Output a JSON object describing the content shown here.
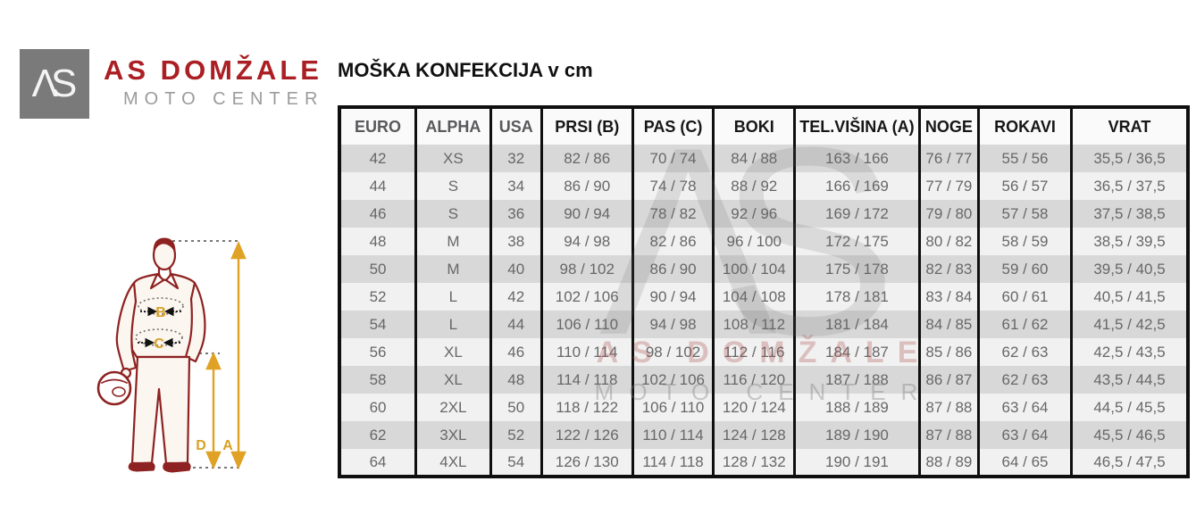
{
  "brand": {
    "logo_glyph": "ΛS",
    "name": "AS DOMŽALE",
    "subtitle": "MOTO CENTER"
  },
  "title": "MOŠKA KONFEKCIJA v cm",
  "watermark": {
    "glyph": "ΛS",
    "line1": "AS DOMŽALE",
    "line2": "MOTO CENTER"
  },
  "figure": {
    "label_a": "A",
    "label_b": "B",
    "label_c": "C",
    "label_d": "D"
  },
  "colors": {
    "brand_red": "#ab1f24",
    "figure_red": "#8e2222",
    "arrow_gold": "#e0a225",
    "row_dark": "#d8d8d8",
    "row_light": "#f1f1f1",
    "border_black": "#0f0f0f"
  },
  "sizing_table": {
    "headers": [
      "EURO",
      "ALPHA",
      "USA",
      "PRSI (B)",
      "PAS (C)",
      "BOKI",
      "TEL.VIŠINA (A)",
      "NOGE",
      "ROKAVI",
      "VRAT"
    ],
    "rows": [
      [
        "42",
        "XS",
        "32",
        "82 / 86",
        "70 / 74",
        "84 / 88",
        "163 / 166",
        "76 / 77",
        "55 / 56",
        "35,5 / 36,5"
      ],
      [
        "44",
        "S",
        "34",
        "86 / 90",
        "74 / 78",
        "88 / 92",
        "166 / 169",
        "77 / 79",
        "56 / 57",
        "36,5 / 37,5"
      ],
      [
        "46",
        "S",
        "36",
        "90 / 94",
        "78 / 82",
        "92 / 96",
        "169 / 172",
        "79 / 80",
        "57 / 58",
        "37,5 / 38,5"
      ],
      [
        "48",
        "M",
        "38",
        "94 / 98",
        "82 / 86",
        "96 / 100",
        "172 / 175",
        "80 / 82",
        "58 / 59",
        "38,5 / 39,5"
      ],
      [
        "50",
        "M",
        "40",
        "98 / 102",
        "86 / 90",
        "100 / 104",
        "175 / 178",
        "82 / 83",
        "59 / 60",
        "39,5 / 40,5"
      ],
      [
        "52",
        "L",
        "42",
        "102 / 106",
        "90 / 94",
        "104 / 108",
        "178 / 181",
        "83 / 84",
        "60 / 61",
        "40,5 / 41,5"
      ],
      [
        "54",
        "L",
        "44",
        "106 / 110",
        "94 / 98",
        "108 / 112",
        "181 / 184",
        "84 / 85",
        "61 / 62",
        "41,5 / 42,5"
      ],
      [
        "56",
        "XL",
        "46",
        "110 / 114",
        "98 / 102",
        "112 / 116",
        "184 / 187",
        "85 / 86",
        "62 / 63",
        "42,5 / 43,5"
      ],
      [
        "58",
        "XL",
        "48",
        "114 / 118",
        "102 / 106",
        "116 / 120",
        "187 / 188",
        "86 / 87",
        "62 / 63",
        "43,5 / 44,5"
      ],
      [
        "60",
        "2XL",
        "50",
        "118 / 122",
        "106 / 110",
        "120 / 124",
        "188 / 189",
        "87 / 88",
        "63 / 64",
        "44,5 / 45,5"
      ],
      [
        "62",
        "3XL",
        "52",
        "122 / 126",
        "110 / 114",
        "124 / 128",
        "189 / 190",
        "87 / 88",
        "63 / 64",
        "45,5 / 46,5"
      ],
      [
        "64",
        "4XL",
        "54",
        "126 / 130",
        "114 / 118",
        "128 / 132",
        "190 / 191",
        "88 / 89",
        "64 / 65",
        "46,5 / 47,5"
      ]
    ]
  }
}
